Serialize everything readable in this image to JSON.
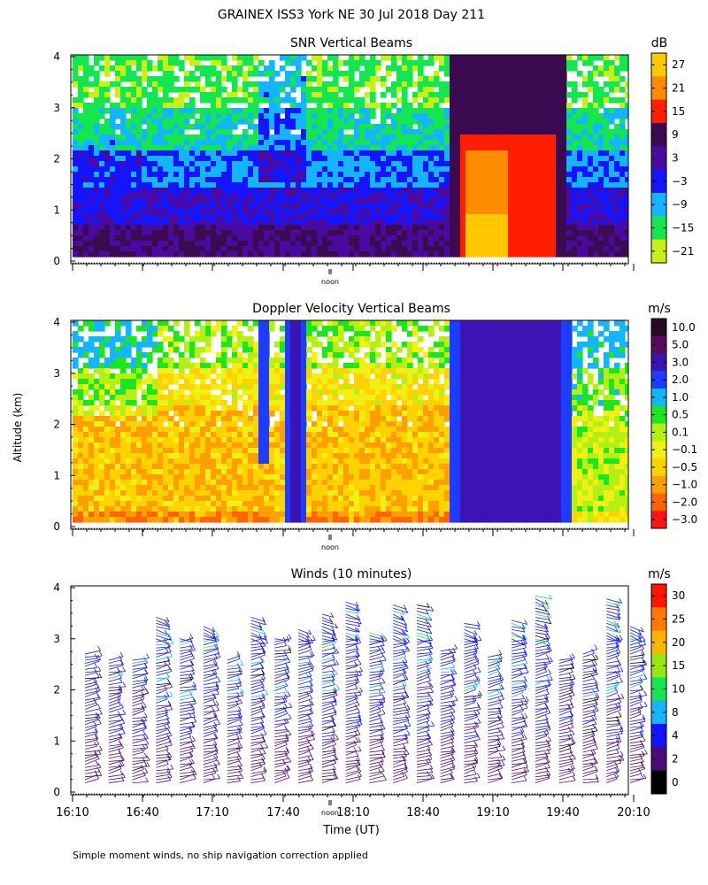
{
  "page": {
    "title": "GRAINEX ISS3 York NE  30 Jul 2018 Day 211",
    "footnote": "Simple moment winds, no ship navigation correction applied",
    "shared_y_label": "Altitude (km)",
    "x_label": "Time (UT)"
  },
  "chart_data": [
    {
      "type": "heatmap",
      "title": "SNR Vertical Beams",
      "xlabel": "",
      "ylabel": "Altitude (km)",
      "ylim": [
        0,
        4
      ],
      "y_ticks": [
        "0",
        "1",
        "2",
        "3",
        "4"
      ],
      "x_marker_label": "noon",
      "colorbar": {
        "unit": "dB",
        "labels": [
          "27",
          "21",
          "15",
          "9",
          "3",
          "−3",
          "−9",
          "−15",
          "−21"
        ],
        "colors": [
          "#ffc800",
          "#ff8c00",
          "#ff1e00",
          "#3c0a50",
          "#4a0aa0",
          "#1414ff",
          "#14b4ff",
          "#14e650",
          "#c8f014"
        ]
      }
    },
    {
      "type": "heatmap",
      "title": "Doppler Velocity Vertical Beams",
      "xlabel": "",
      "ylabel": "Altitude (km)",
      "ylim": [
        0,
        4
      ],
      "y_ticks": [
        "0",
        "1",
        "2",
        "3",
        "4"
      ],
      "x_marker_label": "noon",
      "colorbar": {
        "unit": "m/s",
        "labels": [
          "10.0",
          "5.0",
          "3.0",
          "2.0",
          "1.0",
          "0.5",
          "0.1",
          "−0.1",
          "−0.5",
          "−1.0",
          "−2.0",
          "−3.0"
        ],
        "colors": [
          "#280a28",
          "#5a0a5a",
          "#3c14b4",
          "#1e3cff",
          "#14b4ff",
          "#1ee61e",
          "#b4f014",
          "#f0f014",
          "#ffd200",
          "#ffa000",
          "#ff6400",
          "#ff1414"
        ]
      }
    },
    {
      "type": "scatter",
      "subtype": "wind-barbs",
      "title": "Winds (10 minutes)",
      "xlabel": "Time (UT)",
      "ylabel": "Altitude (km)",
      "ylim": [
        0,
        4
      ],
      "y_ticks": [
        "0",
        "1",
        "2",
        "3",
        "4"
      ],
      "x_ticks": [
        "16:10",
        "16:40",
        "17:10",
        "17:40",
        "18:10",
        "18:40",
        "19:10",
        "19:40",
        "20:10"
      ],
      "x_marker_label": "noon",
      "profile_times": [
        "16:20",
        "16:30",
        "16:40",
        "16:50",
        "17:00",
        "17:10",
        "17:20",
        "17:30",
        "17:40",
        "17:50",
        "18:00",
        "18:10",
        "18:20",
        "18:30",
        "18:40",
        "18:50",
        "19:00",
        "19:10",
        "19:20",
        "19:30",
        "19:40",
        "19:50",
        "20:00",
        "20:10"
      ],
      "colorbar": {
        "unit": "m/s",
        "labels": [
          "30",
          "25",
          "20",
          "15",
          "10",
          "8",
          "4",
          "2",
          "0"
        ],
        "colors": [
          "#ff1400",
          "#ff7800",
          "#ffb400",
          "#96e614",
          "#14e650",
          "#14b4ff",
          "#1414ff",
          "#4a0a7a",
          "#000000"
        ]
      }
    }
  ]
}
